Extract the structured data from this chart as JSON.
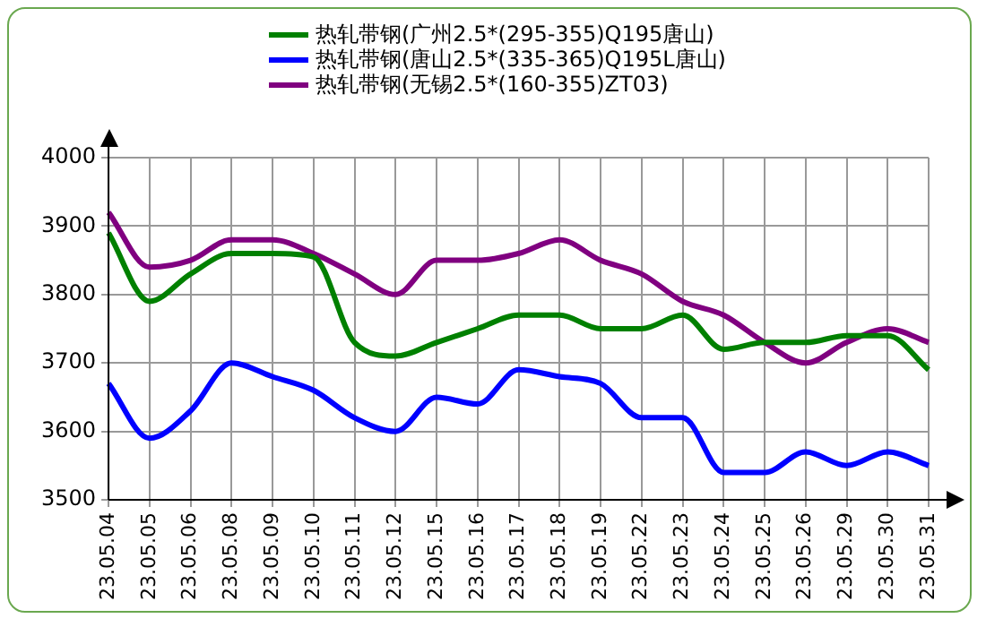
{
  "chart_data": {
    "type": "line",
    "categories": [
      "23.05.04",
      "23.05.05",
      "23.05.06",
      "23.05.08",
      "23.05.09",
      "23.05.10",
      "23.05.11",
      "23.05.12",
      "23.05.15",
      "23.05.16",
      "23.05.17",
      "23.05.18",
      "23.05.19",
      "23.05.22",
      "23.05.23",
      "23.05.24",
      "23.05.25",
      "23.05.26",
      "23.05.29",
      "23.05.30",
      "23.05.31"
    ],
    "series": [
      {
        "name": "热轧带钢(广州2.5*(295-355)Q195唐山)",
        "color": "#008000",
        "values": [
          3890,
          3790,
          3830,
          3860,
          3860,
          3855,
          3730,
          3710,
          3730,
          3750,
          3770,
          3770,
          3750,
          3750,
          3770,
          3720,
          3730,
          3730,
          3740,
          3740,
          3690
        ]
      },
      {
        "name": "热轧带钢(唐山2.5*(335-365)Q195L唐山)",
        "color": "#0000ff",
        "values": [
          3670,
          3590,
          3630,
          3700,
          3680,
          3660,
          3620,
          3600,
          3650,
          3640,
          3690,
          3680,
          3670,
          3620,
          3620,
          3540,
          3540,
          3570,
          3550,
          3570,
          3550
        ]
      },
      {
        "name": "热轧带钢(无锡2.5*(160-355)ZT03)",
        "color": "#800080",
        "values": [
          3920,
          3840,
          3850,
          3880,
          3880,
          3860,
          3830,
          3800,
          3850,
          3850,
          3860,
          3880,
          3850,
          3830,
          3790,
          3770,
          3730,
          3700,
          3730,
          3750,
          3730
        ]
      }
    ],
    "ylim": [
      3500,
      4000
    ],
    "yticks": [
      3500,
      3600,
      3700,
      3800,
      3900,
      4000
    ],
    "grid": true,
    "legend": "top",
    "marker": "none",
    "line_style": "solid"
  }
}
